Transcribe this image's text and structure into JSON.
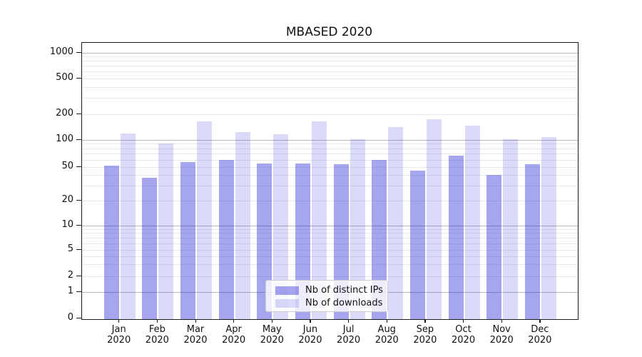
{
  "figure_title": "MBASED 2020",
  "chart_data": {
    "type": "bar",
    "title": "MBASED 2020",
    "categories": [
      "Jan 2020",
      "Feb 2020",
      "Mar 2020",
      "Apr 2020",
      "May 2020",
      "Jun 2020",
      "Jul 2020",
      "Aug 2020",
      "Sep 2020",
      "Oct 2020",
      "Nov 2020",
      "Dec 2020"
    ],
    "month_labels": [
      "Jan",
      "Feb",
      "Mar",
      "Apr",
      "May",
      "Jun",
      "Jul",
      "Aug",
      "Sep",
      "Oct",
      "Nov",
      "Dec"
    ],
    "year_label": "2020",
    "series": [
      {
        "name": "Nb of distinct IPs",
        "color": "rgba(40,40,220,0.42)",
        "values": [
          52,
          37,
          57,
          60,
          55,
          55,
          54,
          60,
          45,
          67,
          40,
          54
        ]
      },
      {
        "name": "Nb of downloads",
        "color": "rgba(40,40,220,0.17)",
        "values": [
          120,
          92,
          164,
          124,
          117,
          164,
          102,
          141,
          174,
          146,
          102,
          109
        ]
      }
    ],
    "xlabel": "",
    "ylabel": "",
    "yticks": [
      0,
      1,
      2,
      5,
      10,
      20,
      50,
      100,
      200,
      500,
      1000
    ],
    "ylim": [
      0,
      1300
    ],
    "yaxis_scale": "symlog (log above 1, linear 0 to 1)",
    "grid": {
      "horizontal": true,
      "vertical": false,
      "minor_gridlines": true
    },
    "legend": {
      "position": "lower center",
      "entries": [
        "Nb of distinct IPs",
        "Nb of downloads"
      ]
    }
  },
  "colors": {
    "bar_distinct_ips": "#a9a9f1",
    "bar_downloads": "#dadaf8",
    "major_grid": "#b9b9b9",
    "minor_grid": "#e9e9e9",
    "axis": "#1c1c1c",
    "text": "#111111",
    "background": "#ffffff"
  }
}
